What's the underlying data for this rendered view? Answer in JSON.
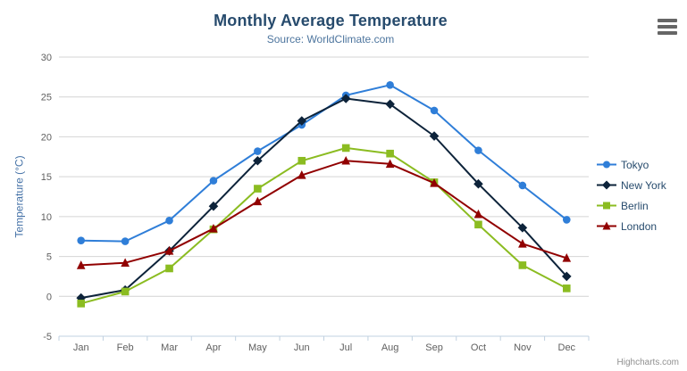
{
  "credits": "Highcharts.com",
  "colors": {
    "title_text": "#274b6d",
    "subtitle_text": "#4d759e",
    "axis_label_text": "#606060",
    "y_axis_title_text": "#4572a7",
    "grid_line": "#d4d4d4",
    "axis_line": "#c0d0e0",
    "legend_text": "#274b6d",
    "credits_text": "#909090",
    "menu_icon": "#666666"
  },
  "chart_data": {
    "type": "line",
    "title": "Monthly Average Temperature",
    "subtitle": "Source: WorldClimate.com",
    "xlabel": "",
    "ylabel": "Temperature (°C)",
    "ylim": [
      -5,
      30
    ],
    "y_ticks": [
      -5,
      0,
      5,
      10,
      15,
      20,
      25,
      30
    ],
    "grid": true,
    "legend_position": "right",
    "categories": [
      "Jan",
      "Feb",
      "Mar",
      "Apr",
      "May",
      "Jun",
      "Jul",
      "Aug",
      "Sep",
      "Oct",
      "Nov",
      "Dec"
    ],
    "series": [
      {
        "name": "Tokyo",
        "color": "#2f7ed8",
        "marker": "circle",
        "values": [
          7.0,
          6.9,
          9.5,
          14.5,
          18.2,
          21.5,
          25.2,
          26.5,
          23.3,
          18.3,
          13.9,
          9.6
        ]
      },
      {
        "name": "New York",
        "color": "#0d233a",
        "marker": "diamond",
        "values": [
          -0.2,
          0.8,
          5.7,
          11.3,
          17.0,
          22.0,
          24.8,
          24.1,
          20.1,
          14.1,
          8.6,
          2.5
        ]
      },
      {
        "name": "Berlin",
        "color": "#8bbc21",
        "marker": "square",
        "values": [
          -0.9,
          0.6,
          3.5,
          8.4,
          13.5,
          17.0,
          18.6,
          17.9,
          14.3,
          9.0,
          3.9,
          1.0
        ]
      },
      {
        "name": "London",
        "color": "#910000",
        "marker": "triangle",
        "values": [
          3.9,
          4.2,
          5.7,
          8.5,
          11.9,
          15.2,
          17.0,
          16.6,
          14.2,
          10.3,
          6.6,
          4.8
        ]
      }
    ]
  }
}
